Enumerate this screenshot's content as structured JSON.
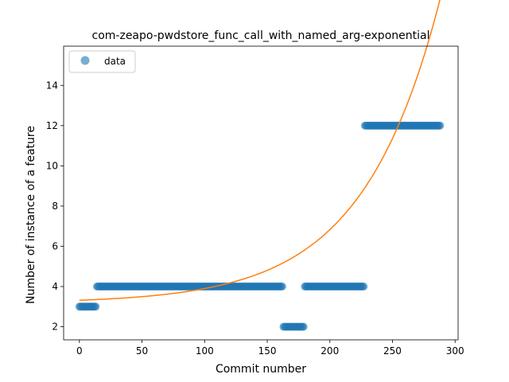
{
  "chart_data": {
    "type": "scatter",
    "title": "com-zeapo-pwdstore_func_call_with_named_arg-exponential",
    "xlabel": "Commit number",
    "ylabel": "Number of instance of a feature",
    "xlim": [
      -12.6,
      302.4
    ],
    "ylim": [
      1.35,
      15.95
    ],
    "xticks": [
      0,
      50,
      100,
      150,
      200,
      250,
      300
    ],
    "yticks": [
      2,
      4,
      6,
      8,
      10,
      12,
      14
    ],
    "legend": {
      "placement": "upper-left",
      "entries": [
        "data"
      ]
    },
    "colors": {
      "data": "#1f77b4",
      "fit": "#ff7f0e"
    },
    "series": [
      {
        "name": "data",
        "kind": "scatter",
        "segments": [
          {
            "x_start": 0,
            "x_end": 13,
            "y": 3
          },
          {
            "x_start": 14,
            "x_end": 162,
            "y": 4
          },
          {
            "x_start": 163,
            "x_end": 179,
            "y": 2
          },
          {
            "x_start": 180,
            "x_end": 227,
            "y": 4
          },
          {
            "x_start": 228,
            "x_end": 288,
            "y": 12
          }
        ]
      },
      {
        "kind": "line",
        "model": {
          "form": "a*exp(b*x)+c",
          "a": 0.1456,
          "b": 0.01612,
          "c": 3.17
        },
        "x_range": [
          0,
          288
        ]
      }
    ]
  }
}
